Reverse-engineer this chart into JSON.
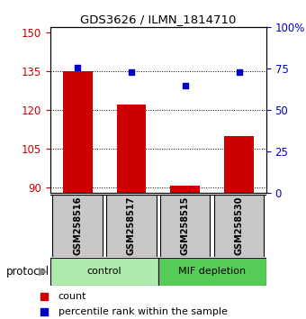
{
  "title": "GDS3626 / ILMN_1814710",
  "samples": [
    "GSM258516",
    "GSM258517",
    "GSM258515",
    "GSM258530"
  ],
  "counts": [
    135.0,
    122.0,
    91.0,
    110.0
  ],
  "percentile_ranks": [
    75.5,
    73.0,
    65.0,
    73.0
  ],
  "groups": [
    {
      "label": "control",
      "indices": [
        0,
        1
      ],
      "color": "#aeeaae"
    },
    {
      "label": "MIF depletion",
      "indices": [
        2,
        3
      ],
      "color": "#55cc55"
    }
  ],
  "ylim_left": [
    88,
    152
  ],
  "yticks_left": [
    90,
    105,
    120,
    135,
    150
  ],
  "ylim_right": [
    0,
    100
  ],
  "yticks_right": [
    0,
    25,
    50,
    75,
    100
  ],
  "ytick_labels_right": [
    "0",
    "25",
    "50",
    "75",
    "100%"
  ],
  "bar_color": "#cc0000",
  "dot_color": "#0000cc",
  "bar_width": 0.55,
  "left_axis_color": "#cc0000",
  "right_axis_color": "#0000cc",
  "sample_box_color": "#c8c8c8",
  "protocol_label": "protocol",
  "legend_count": "count",
  "legend_pct": "percentile rank within the sample"
}
